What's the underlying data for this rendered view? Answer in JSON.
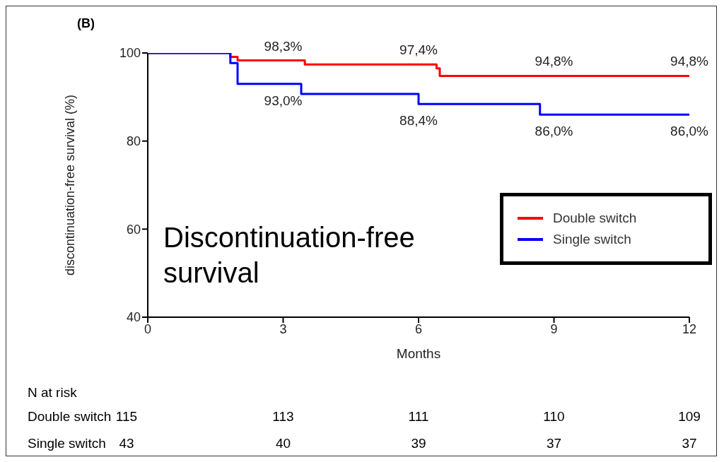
{
  "chart_data": {
    "type": "step",
    "title": "(B)",
    "xlabel": "Months",
    "ylabel": "discontinuation-free survival (%)",
    "xlim": [
      0,
      12
    ],
    "xticks": [
      0,
      3,
      6,
      9,
      12
    ],
    "ylim": [
      40,
      100
    ],
    "yticks": [
      40,
      60,
      80,
      100
    ],
    "legend": "right",
    "series": [
      {
        "name": "Double switch",
        "color": "#ff0000",
        "x": [
          0,
          1.83,
          1.99,
          3,
          3.48,
          6,
          6.4,
          6.47,
          9,
          12
        ],
        "values": [
          100,
          99.1,
          98.3,
          98.3,
          97.4,
          97.4,
          96.5,
          94.8,
          94.8,
          94.8
        ],
        "value_labels": [
          null,
          null,
          null,
          "98,3%",
          null,
          "97,4%",
          null,
          null,
          "94,8%",
          "94,8%"
        ]
      },
      {
        "name": "Single switch",
        "color": "#0000ff",
        "x": [
          0,
          1.83,
          1.99,
          3,
          3.4,
          6,
          8.69,
          9,
          12
        ],
        "values": [
          100,
          97.7,
          93.0,
          93.0,
          90.7,
          88.4,
          86.0,
          86.0,
          86.0
        ],
        "value_labels": [
          null,
          null,
          null,
          "93,0%",
          null,
          "88,4%",
          null,
          "86,0%",
          "86,0%"
        ]
      }
    ],
    "annotations": [
      "Discontinuation-free survival",
      "N at risk",
      "Double switch",
      "115",
      "113",
      "111",
      "110",
      "109",
      "Single switch",
      "43",
      "40",
      "39",
      "37",
      "37"
    ]
  }
}
